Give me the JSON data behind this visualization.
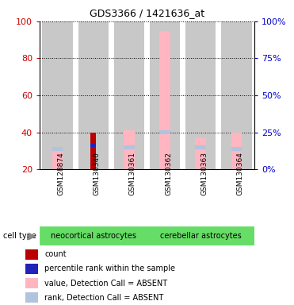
{
  "title": "GDS3366 / 1421636_at",
  "samples": [
    "GSM128874",
    "GSM130340",
    "GSM130361",
    "GSM130362",
    "GSM130363",
    "GSM130364"
  ],
  "groups": [
    {
      "label": "neocortical astrocytes",
      "color": "#66DD66",
      "indices": [
        0,
        1,
        2
      ]
    },
    {
      "label": "cerebellar astrocytes",
      "color": "#66DD66",
      "indices": [
        3,
        4,
        5
      ]
    }
  ],
  "bars": {
    "value_absent": [
      30,
      0,
      41,
      95,
      37,
      40
    ],
    "rank_absent": [
      31,
      0,
      32,
      40,
      32,
      31
    ],
    "count": [
      0,
      40,
      0,
      0,
      0,
      0
    ],
    "percentile": [
      0,
      33,
      0,
      0,
      0,
      0
    ]
  },
  "colors": {
    "value_absent": "#FFB6C1",
    "rank_absent": "#B0C4DE",
    "count": "#BB0000",
    "percentile": "#2222BB",
    "left_axis": "#CC0000",
    "right_axis": "#0000CC",
    "bar_bg": "#C8C8C8",
    "bg_white": "#FFFFFF"
  },
  "ylim": [
    20,
    100
  ],
  "yticks_left": [
    20,
    40,
    60,
    80,
    100
  ],
  "yticks_right_vals": [
    0,
    25,
    50,
    75,
    100
  ],
  "legend": [
    {
      "color": "#BB0000",
      "label": "count"
    },
    {
      "color": "#2222BB",
      "label": "percentile rank within the sample"
    },
    {
      "color": "#FFB6C1",
      "label": "value, Detection Call = ABSENT"
    },
    {
      "color": "#B0C4DE",
      "label": "rank, Detection Call = ABSENT"
    }
  ]
}
